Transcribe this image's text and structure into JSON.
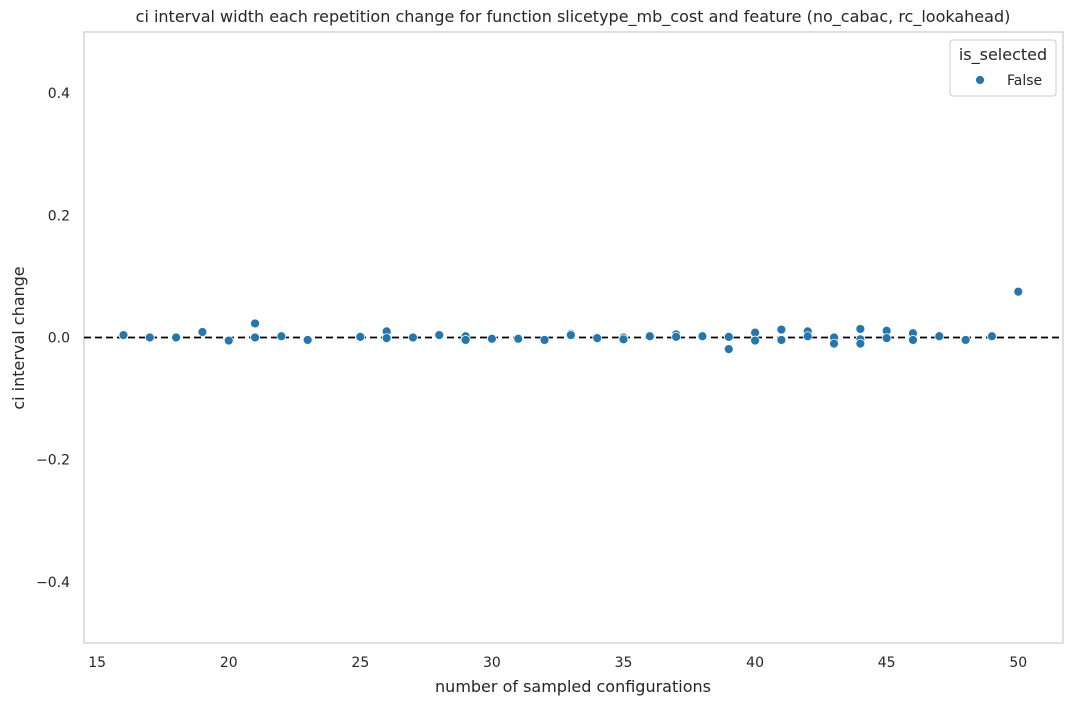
{
  "chart_data": {
    "type": "scatter",
    "title": "ci interval width each repetition change for function slicetype_mb_cost and feature (no_cabac, rc_lookahead)",
    "xlabel": "number of sampled configurations",
    "ylabel": "ci interval change",
    "xlim": [
      14.5,
      51.7
    ],
    "ylim": [
      -0.5,
      0.5
    ],
    "xticks": [
      15,
      20,
      25,
      30,
      35,
      40,
      45,
      50
    ],
    "yticks": [
      0.4,
      0.2,
      0.0,
      -0.2,
      -0.4
    ],
    "ytick_labels": [
      "0.4",
      "0.2",
      "0.0",
      "−0.2",
      "−0.4"
    ],
    "grid": false,
    "reference_line": {
      "y": 0.0,
      "style": "dashed",
      "color": "#000000"
    },
    "legend": {
      "title": "is_selected",
      "position": "top-right",
      "entries": [
        "False"
      ]
    },
    "series": [
      {
        "name": "False",
        "color": "#1f77b4",
        "points": [
          [
            16,
            0.004
          ],
          [
            17,
            0.0
          ],
          [
            18,
            0.0
          ],
          [
            19,
            0.009
          ],
          [
            20,
            -0.005
          ],
          [
            21,
            0.023
          ],
          [
            21,
            0.0
          ],
          [
            22,
            0.002
          ],
          [
            23,
            -0.004
          ],
          [
            25,
            0.001
          ],
          [
            26,
            0.01
          ],
          [
            26,
            -0.001
          ],
          [
            27,
            0.0
          ],
          [
            28,
            0.004
          ],
          [
            29,
            0.002
          ],
          [
            29,
            -0.004
          ],
          [
            30,
            -0.002
          ],
          [
            31,
            -0.002
          ],
          [
            32,
            -0.004
          ],
          [
            33,
            0.006
          ],
          [
            33,
            0.004
          ],
          [
            34,
            -0.001
          ],
          [
            35,
            0.0
          ],
          [
            35,
            -0.003
          ],
          [
            36,
            0.002
          ],
          [
            37,
            0.005
          ],
          [
            37,
            0.001
          ],
          [
            38,
            0.002
          ],
          [
            39,
            0.001
          ],
          [
            39,
            -0.019
          ],
          [
            40,
            0.008
          ],
          [
            40,
            -0.005
          ],
          [
            41,
            0.013
          ],
          [
            41,
            -0.004
          ],
          [
            42,
            0.01
          ],
          [
            42,
            0.002
          ],
          [
            43,
            0.0
          ],
          [
            43,
            -0.01
          ],
          [
            44,
            0.014
          ],
          [
            44,
            -0.003
          ],
          [
            44,
            -0.01
          ],
          [
            45,
            0.011
          ],
          [
            45,
            -0.001
          ],
          [
            46,
            0.007
          ],
          [
            46,
            -0.004
          ],
          [
            47,
            0.002
          ],
          [
            48,
            -0.004
          ],
          [
            49,
            0.002
          ],
          [
            50,
            0.075
          ]
        ]
      }
    ]
  }
}
